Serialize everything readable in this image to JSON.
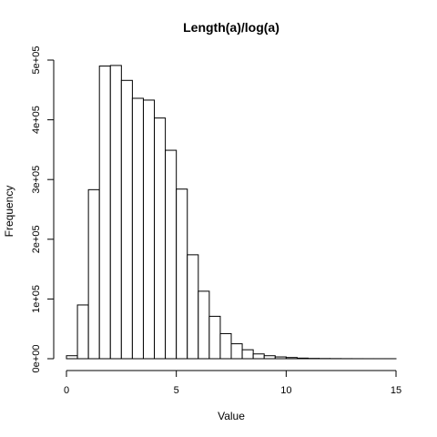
{
  "chart_data": {
    "type": "bar",
    "title": "Length(a)/log(a)",
    "xlabel": "Value",
    "ylabel": "Frequency",
    "bin_width": 0.5,
    "bins_start": [
      0,
      0.5,
      1,
      1.5,
      2,
      2.5,
      3,
      3.5,
      4,
      4.5,
      5,
      5.5,
      6,
      6.5,
      7,
      7.5,
      8,
      8.5,
      9,
      9.5,
      10,
      10.5,
      11,
      11.5,
      12,
      12.5,
      13,
      13.5,
      14,
      14.5
    ],
    "values": [
      5000,
      90000,
      283000,
      490000,
      491000,
      466000,
      436000,
      433000,
      403000,
      349000,
      284000,
      174000,
      113000,
      71000,
      42000,
      25000,
      15000,
      8000,
      5000,
      3000,
      2000,
      1000,
      500,
      300,
      200,
      100,
      60,
      30,
      20,
      10
    ],
    "xlim": [
      0,
      15
    ],
    "ylim": [
      0,
      500000
    ],
    "x_ticks": [
      0,
      5,
      10,
      15
    ],
    "x_tick_labels": [
      "0",
      "5",
      "10",
      "15"
    ],
    "y_ticks": [
      0,
      100000,
      200000,
      300000,
      400000,
      500000
    ],
    "y_tick_labels": [
      "0e+00",
      "1e+05",
      "2e+05",
      "3e+05",
      "4e+05",
      "5e+05"
    ],
    "grid": false,
    "legend": "none"
  }
}
